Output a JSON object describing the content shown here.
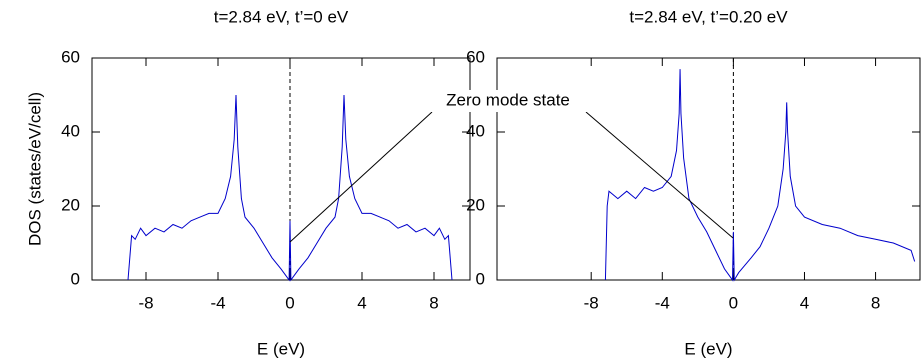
{
  "chart_data": [
    {
      "type": "line",
      "title": "t=2.84 eV, t’=0 eV",
      "x_label": "E (eV)",
      "y_label": "DOS (states/eV/cell)",
      "annotation": "Zero mode state",
      "xlim": [
        -11,
        10
      ],
      "xticks": [
        -8,
        -4,
        0,
        4,
        8
      ],
      "ylim": [
        0,
        60
      ],
      "yticks": [
        0,
        20,
        40,
        60
      ],
      "series": [
        {
          "name": "DOS",
          "color": "#0000cc",
          "x": [
            -9.0,
            -8.8,
            -8.6,
            -8.3,
            -8.0,
            -7.5,
            -7.0,
            -6.5,
            -6.0,
            -5.5,
            -5.0,
            -4.5,
            -4.0,
            -3.6,
            -3.3,
            -3.1,
            -3.0,
            -2.9,
            -2.7,
            -2.5,
            -2.0,
            -1.5,
            -1.0,
            -0.5,
            -0.2,
            -0.05,
            0.0,
            0.05,
            0.2,
            0.5,
            1.0,
            1.5,
            2.0,
            2.5,
            2.7,
            2.9,
            3.0,
            3.1,
            3.3,
            3.6,
            4.0,
            4.5,
            5.0,
            5.5,
            6.0,
            6.5,
            7.0,
            7.5,
            8.0,
            8.3,
            8.6,
            8.8,
            9.0
          ],
          "values": [
            0,
            12,
            11,
            14,
            12,
            14,
            13,
            15,
            14,
            16,
            17,
            18,
            18,
            22,
            28,
            38,
            50,
            36,
            22,
            17,
            14,
            10,
            6,
            3,
            1,
            0,
            16,
            0,
            1,
            3,
            6,
            10,
            14,
            17,
            22,
            36,
            50,
            38,
            28,
            22,
            18,
            18,
            17,
            16,
            14,
            15,
            13,
            14,
            12,
            14,
            11,
            12,
            0
          ]
        }
      ]
    },
    {
      "type": "line",
      "title": "t=2.84 eV, t’=0.20 eV",
      "x_label": "E (eV)",
      "xlim": [
        -13.3,
        10.5
      ],
      "xticks": [
        -8,
        -4,
        0,
        4,
        8
      ],
      "ylim": [
        0,
        60
      ],
      "yticks": [
        0,
        20,
        40,
        60
      ],
      "series": [
        {
          "name": "DOS",
          "color": "#0000cc",
          "x": [
            -7.2,
            -7.1,
            -7.0,
            -6.5,
            -6.0,
            -5.5,
            -5.0,
            -4.5,
            -4.0,
            -3.5,
            -3.2,
            -3.05,
            -3.0,
            -2.95,
            -2.8,
            -2.5,
            -2.0,
            -1.5,
            -1.0,
            -0.5,
            -0.2,
            -0.05,
            0.0,
            0.05,
            0.3,
            1.0,
            1.5,
            2.0,
            2.5,
            2.8,
            2.95,
            3.0,
            3.05,
            3.2,
            3.5,
            4.0,
            5.0,
            6.0,
            7.0,
            8.0,
            9.0,
            10.0,
            10.2
          ],
          "values": [
            0,
            20,
            24,
            22,
            24,
            22,
            25,
            24,
            25,
            28,
            35,
            45,
            57,
            45,
            33,
            22,
            17,
            13,
            8,
            3,
            1,
            0,
            13,
            0,
            2,
            6,
            9,
            14,
            20,
            30,
            40,
            48,
            40,
            28,
            20,
            17,
            15,
            14,
            12,
            11,
            10,
            8,
            5
          ]
        }
      ]
    }
  ]
}
